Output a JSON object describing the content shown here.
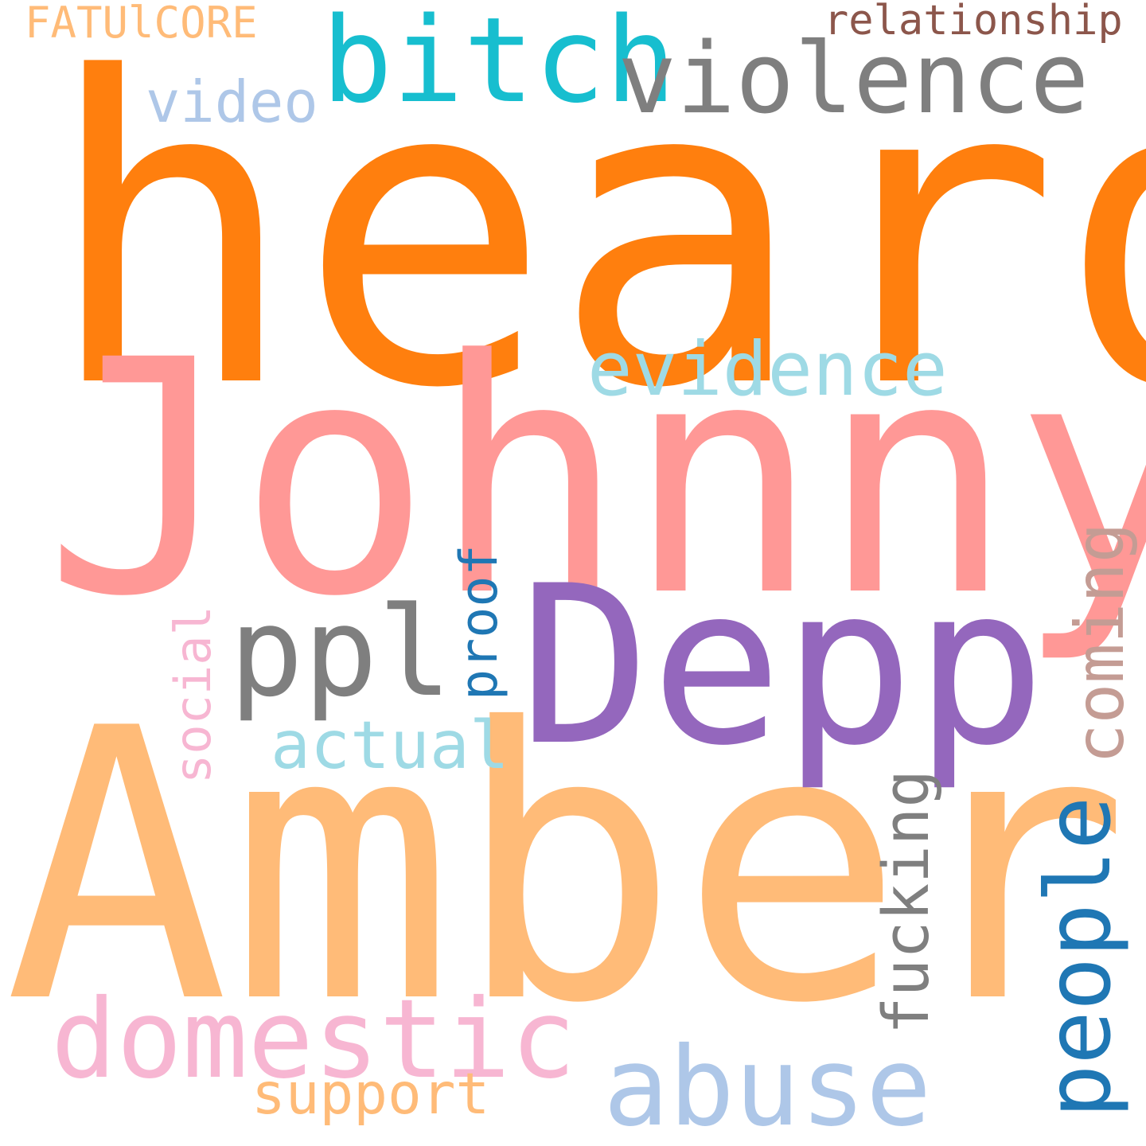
{
  "words": {
    "heard": {
      "text": "heard",
      "color": "#ff7f0e"
    },
    "johnny": {
      "text": "Johnny",
      "color": "#ff9896"
    },
    "amber": {
      "text": "Amber",
      "color": "#ffbb78"
    },
    "depp": {
      "text": "Depp",
      "color": "#9467bd"
    },
    "bitch": {
      "text": "bitch",
      "color": "#17becf"
    },
    "violence": {
      "text": "violence",
      "color": "#7f7f7f"
    },
    "evidence": {
      "text": "evidence",
      "color": "#9edae5"
    },
    "ppl": {
      "text": "ppl",
      "color": "#7f7f7f"
    },
    "actual": {
      "text": "actual",
      "color": "#9edae5"
    },
    "domestic": {
      "text": "domestic",
      "color": "#f7b6d2"
    },
    "abuse": {
      "text": "abuse",
      "color": "#aec7e8"
    },
    "support": {
      "text": "support",
      "color": "#ffbb78"
    },
    "video": {
      "text": "video",
      "color": "#aec7e8"
    },
    "fatulcore": {
      "text": "FATUlCORE",
      "color": "#ffbb78"
    },
    "relationship": {
      "text": "relationship",
      "color": "#8c564b"
    },
    "proof": {
      "text": "proof",
      "color": "#1f77b4"
    },
    "coming": {
      "text": "coming",
      "color": "#c49c94"
    },
    "social": {
      "text": "social",
      "color": "#f7b6d2"
    },
    "fucking": {
      "text": "fucking",
      "color": "#7f7f7f"
    },
    "people": {
      "text": "people",
      "color": "#1f77b4"
    }
  }
}
